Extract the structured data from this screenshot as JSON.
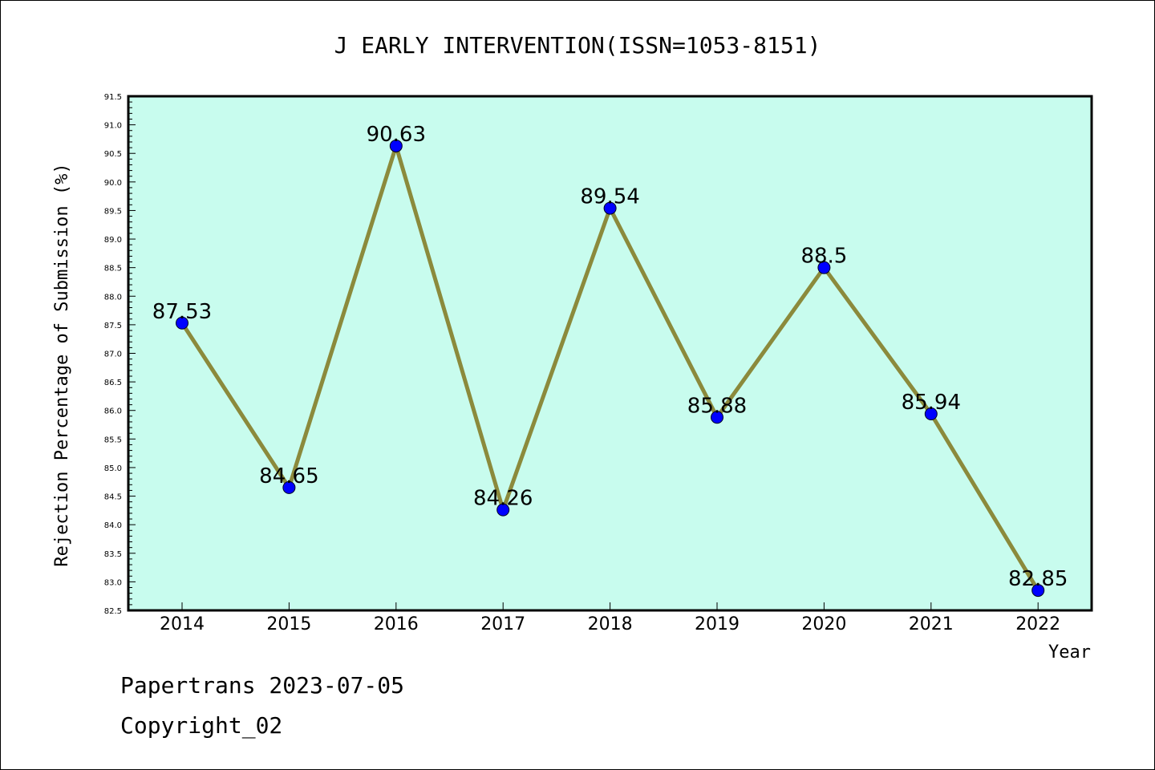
{
  "chart_data": {
    "type": "line",
    "title": "J EARLY INTERVENTION(ISSN=1053-8151)",
    "xlabel": "Year",
    "ylabel": "Rejection Percentage of Submission (%)",
    "categories": [
      "2014",
      "2015",
      "2016",
      "2017",
      "2018",
      "2019",
      "2020",
      "2021",
      "2022"
    ],
    "values": [
      87.53,
      84.65,
      90.63,
      84.26,
      89.54,
      85.88,
      88.5,
      85.94,
      82.85
    ],
    "data_labels": [
      "87.53",
      "84.65",
      "90.63",
      "84.26",
      "89.54",
      "85.88",
      "88.5",
      "85.94",
      "82.85"
    ],
    "ylim": [
      82.5,
      91.5
    ],
    "yticks": [
      "82.5",
      "83.0",
      "83.5",
      "84.0",
      "84.5",
      "85.0",
      "85.5",
      "86.0",
      "86.5",
      "87.0",
      "87.5",
      "88.0",
      "88.5",
      "89.0",
      "89.5",
      "90.0",
      "90.5",
      "91.0",
      "91.5"
    ],
    "grid": false,
    "colors": {
      "plot_background": "#c8fcee",
      "line": "#8b8a3c",
      "marker": "#0000ff"
    }
  },
  "footer": {
    "line1": "Papertrans 2023-07-05",
    "line2": "Copyright_02"
  }
}
